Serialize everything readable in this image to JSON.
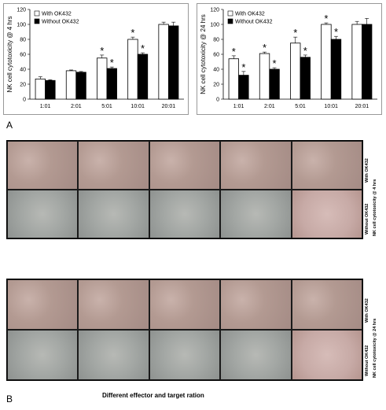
{
  "chart_data": [
    {
      "type": "bar",
      "categories": [
        "1:01",
        "2:01",
        "5:01",
        "10:01",
        "20:01"
      ],
      "series": [
        {
          "name": "With OK432",
          "values": [
            27,
            38,
            55,
            80,
            100
          ],
          "errors": [
            3,
            1,
            4,
            3,
            3
          ],
          "sig": [
            false,
            false,
            true,
            true,
            false
          ]
        },
        {
          "name": "Without OK432",
          "values": [
            25,
            36,
            41,
            60,
            98
          ],
          "errors": [
            1,
            1,
            2,
            2,
            5
          ],
          "sig": [
            false,
            false,
            true,
            true,
            false
          ]
        }
      ],
      "ylabel": "NK cell cytotoxicity @ 4 hrs",
      "ylim": [
        0,
        120
      ],
      "yticks": [
        0,
        20,
        40,
        60,
        80,
        100,
        120
      ],
      "colors": {
        "with": "#ffffff",
        "without": "#000000"
      },
      "legend": "top-left"
    },
    {
      "type": "bar",
      "categories": [
        "1:01",
        "2:01",
        "5:01",
        "10:01",
        "20:01"
      ],
      "series": [
        {
          "name": "With OK432",
          "values": [
            54,
            61,
            75,
            100,
            100
          ],
          "errors": [
            4,
            2,
            8,
            2,
            4
          ],
          "sig": [
            true,
            true,
            true,
            true,
            false
          ]
        },
        {
          "name": "Without OK432",
          "values": [
            32,
            40,
            56,
            80,
            100
          ],
          "errors": [
            5,
            2,
            3,
            4,
            8
          ],
          "sig": [
            true,
            true,
            true,
            true,
            false
          ]
        }
      ],
      "ylabel": "NK cell cytotoxicity @ 24 hrs",
      "ylim": [
        0,
        120
      ],
      "yticks": [
        0,
        20,
        40,
        60,
        80,
        100,
        120
      ],
      "colors": {
        "with": "#ffffff",
        "without": "#000000"
      },
      "legend": "top-left"
    }
  ],
  "labels": {
    "panel_a": "A",
    "panel_b": "B",
    "star": "*",
    "xcaption": "Different effector and target ration"
  },
  "micro": {
    "top": {
      "row1": "With OK432",
      "row2": "Without OK432",
      "time": "NK cell cytotoxicity @ 4 hrs"
    },
    "bottom": {
      "row1": "With OK432",
      "row2": "Without OK432",
      "time": "NK cell cytotoxicity @ 24 hrs"
    }
  }
}
